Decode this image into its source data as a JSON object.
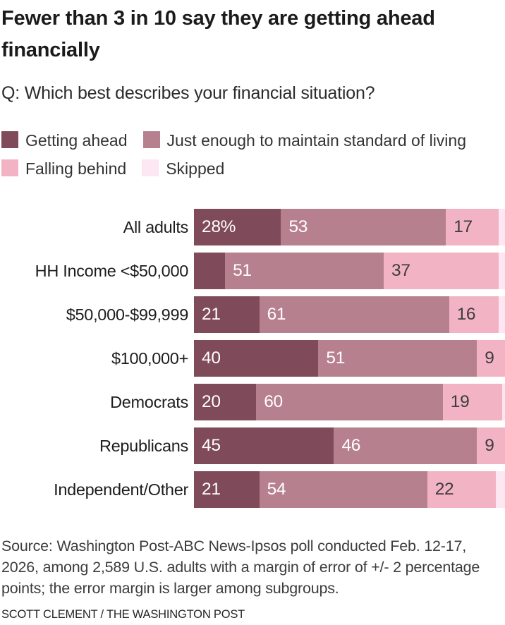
{
  "header": {
    "title": "Fewer than 3 in 10 say they are getting ahead financially",
    "question": "Q: Which best describes your financial situation?"
  },
  "colors": {
    "getting_ahead": "#7F4A5A",
    "just_enough": "#B7808F",
    "falling_behind": "#F2B4C4",
    "skipped": "#FCE7F2",
    "label_on_dark": "#FFFFFF",
    "label_on_light": "#3d3d3d"
  },
  "legend": {
    "items": [
      {
        "label": "Getting ahead",
        "color": "#7F4A5A"
      },
      {
        "label": "Just enough to maintain standard of living",
        "color": "#B7808F"
      },
      {
        "label": "Falling behind",
        "color": "#F2B4C4"
      },
      {
        "label": "Skipped",
        "color": "#FCE7F2"
      }
    ]
  },
  "chart_data": {
    "type": "bar",
    "orientation": "horizontal",
    "stacked": true,
    "xlim": [
      0,
      100
    ],
    "unit": "percent",
    "grid": false,
    "legend_position": "top",
    "categories": [
      "All adults",
      "HH Income <$50,000",
      "$50,000-$99,999",
      "$100,000+",
      "Democrats",
      "Republicans",
      "Independent/Other"
    ],
    "series": [
      {
        "name": "Getting ahead",
        "color": "#7F4A5A",
        "text_color": "#FFFFFF",
        "values": [
          28,
          10,
          21,
          40,
          20,
          45,
          21
        ],
        "labels": [
          "28%",
          "",
          "21",
          "40",
          "20",
          "45",
          "21"
        ]
      },
      {
        "name": "Just enough to maintain standard of living",
        "color": "#B7808F",
        "text_color": "#FFFFFF",
        "values": [
          53,
          51,
          61,
          51,
          60,
          46,
          54
        ],
        "labels": [
          "53",
          "51",
          "61",
          "51",
          "60",
          "46",
          "54"
        ]
      },
      {
        "name": "Falling behind",
        "color": "#F2B4C4",
        "text_color": "#3d3d3d",
        "values": [
          17,
          37,
          16,
          9,
          19,
          9,
          22
        ],
        "labels": [
          "17",
          "37",
          "16",
          "9",
          "19",
          "9",
          "22"
        ]
      },
      {
        "name": "Skipped",
        "color": "#FCE7F2",
        "text_color": "#3d3d3d",
        "values": [
          2,
          2,
          2,
          0,
          1,
          0,
          3
        ],
        "labels": [
          "",
          "",
          "",
          "",
          "",
          "",
          ""
        ]
      }
    ]
  },
  "footer": {
    "source": "Source: Washington Post-ABC News-Ipsos poll conducted Feb. 12-17, 2026, among 2,589 U.S. adults with a margin of error of +/- 2 percentage points; the error margin is larger among subgroups.",
    "byline": "SCOTT CLEMENT / THE WASHINGTON POST"
  }
}
